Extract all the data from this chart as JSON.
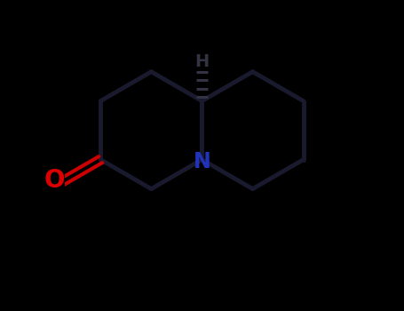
{
  "bg_color": "#000000",
  "bond_color": "#111111",
  "ring_bond_color": "#1a1a2e",
  "N_color": "#2233bb",
  "O_color": "#dd0000",
  "CO_bond_color": "#cc0000",
  "H_color": "#333344",
  "line_width": 3.5,
  "fig_width": 4.55,
  "fig_height": 3.5,
  "dpi": 100,
  "xlim": [
    -2.8,
    2.8
  ],
  "ylim": [
    -2.2,
    2.5
  ]
}
